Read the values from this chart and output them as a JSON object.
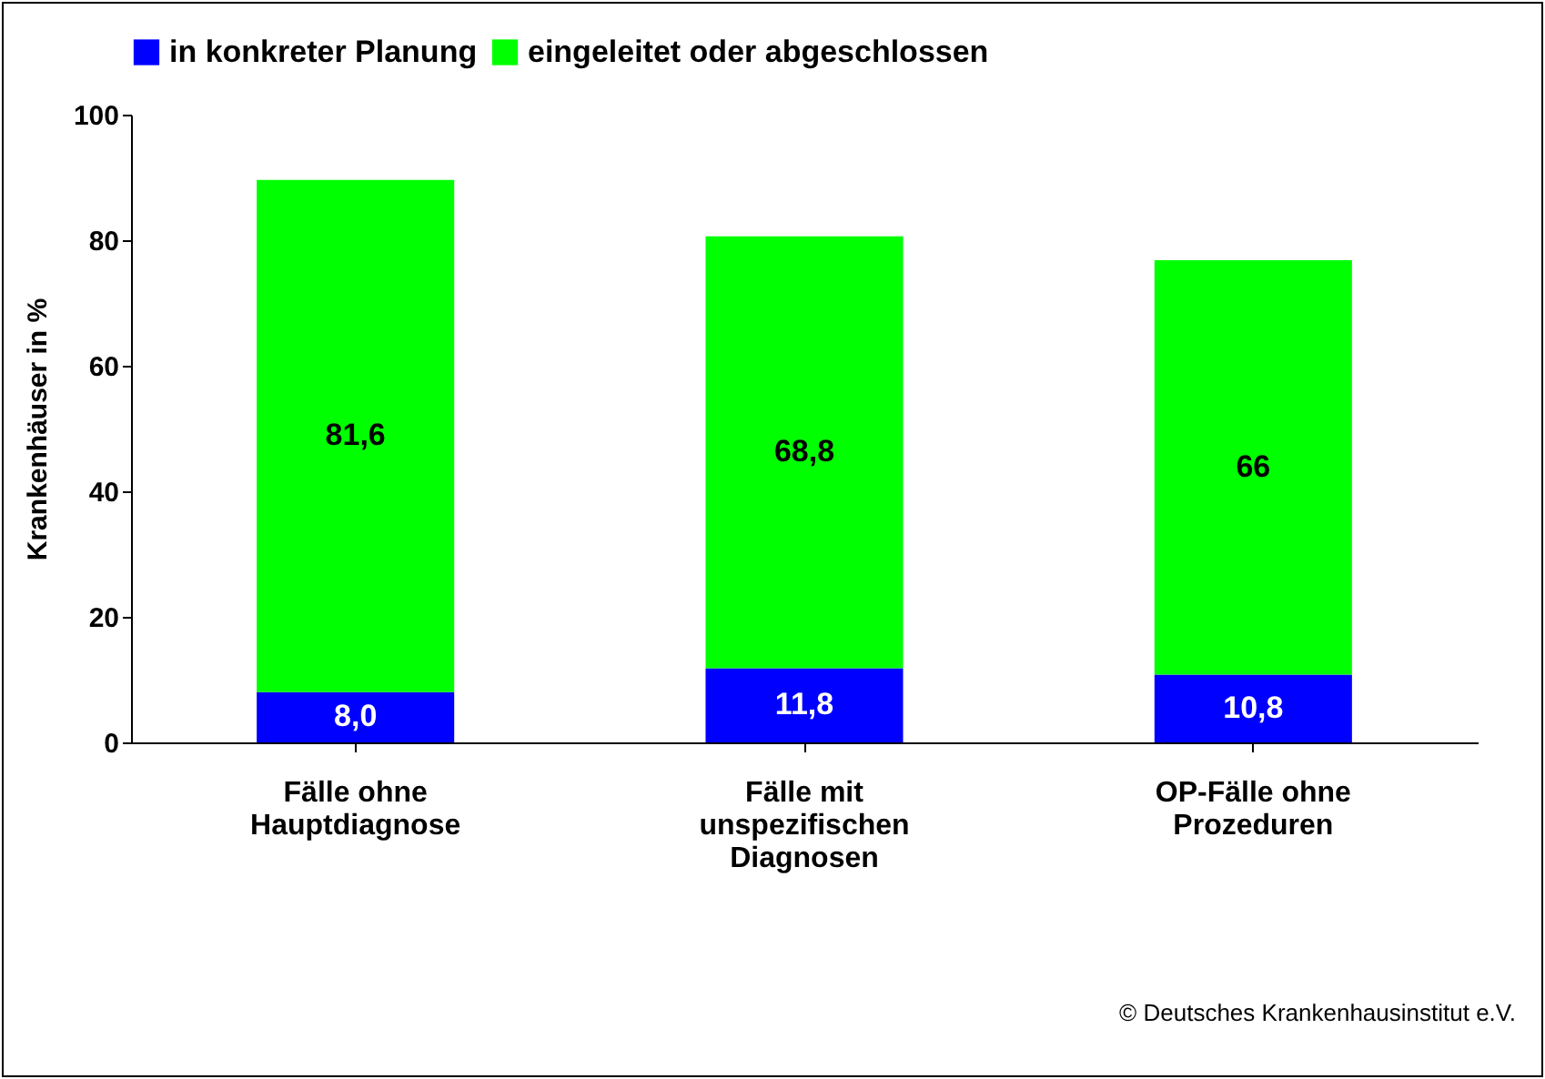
{
  "chart_data": {
    "type": "bar",
    "stacked": true,
    "ylabel": "Krankenhäuser in %",
    "categories": [
      "Fälle ohne Hauptdiagnose",
      "Fälle mit unspezifischen Diagnosen",
      "OP-Fälle ohne Prozeduren"
    ],
    "series": [
      {
        "name": "in konkreter Planung",
        "color": "#0000ff",
        "values": [
          8.0,
          11.8,
          10.8
        ],
        "value_labels": [
          "8,0",
          "11,8",
          "10,8"
        ]
      },
      {
        "name": "eingeleitet oder abgeschlossen",
        "color": "#00ff00",
        "values": [
          81.6,
          68.8,
          66
        ],
        "value_labels": [
          "81,6",
          "68,8",
          "66"
        ]
      }
    ],
    "ylim": [
      0,
      100
    ],
    "yticks": [
      0,
      20,
      40,
      60,
      80,
      100
    ],
    "grid": false,
    "legend": "top",
    "annotations": [
      "© Deutsches Krankenhausinstitut e.V."
    ]
  }
}
